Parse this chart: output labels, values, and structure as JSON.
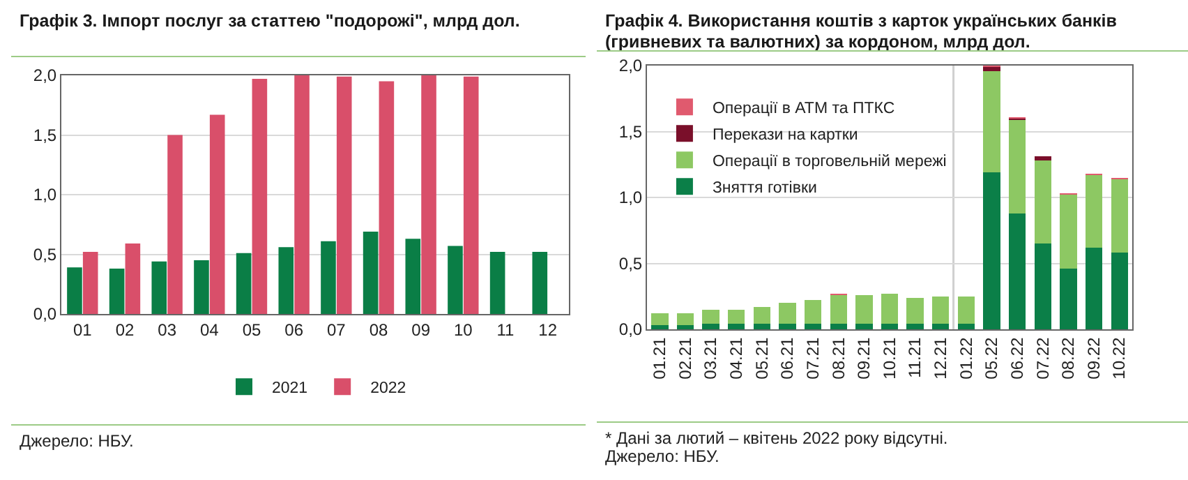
{
  "chart_data": [
    {
      "type": "bar",
      "title": "Графік 3. Імпорт послуг за статтею \"подорожі\", млрд дол.",
      "categories": [
        "01",
        "02",
        "03",
        "04",
        "05",
        "06",
        "07",
        "08",
        "09",
        "10",
        "11",
        "12"
      ],
      "series": [
        {
          "name": "2021",
          "color": "#0a7e46",
          "values": [
            0.39,
            0.38,
            0.44,
            0.45,
            0.51,
            0.56,
            0.61,
            0.69,
            0.63,
            0.57,
            0.52,
            0.52
          ]
        },
        {
          "name": "2022",
          "color": "#d94f6a",
          "values": [
            0.52,
            0.59,
            1.5,
            1.67,
            1.97,
            2.0,
            1.99,
            1.95,
            2.0,
            1.99,
            null,
            null
          ]
        }
      ],
      "ylim": [
        0,
        2
      ],
      "yticks": [
        {
          "value": 0,
          "label": "0,0"
        },
        {
          "value": 0.5,
          "label": "0,5"
        },
        {
          "value": 1,
          "label": "1,0"
        },
        {
          "value": 1.5,
          "label": "1,5"
        },
        {
          "value": 2,
          "label": "2,0"
        }
      ],
      "grid": "y",
      "legend": "bottom",
      "annotations": [
        "Джерело: НБУ."
      ]
    },
    {
      "type": "bar",
      "title": "Графік 4. Використання коштів з карток українських банків (гривневих та валютних) за кордоном, млрд дол.",
      "categories": [
        "01.21",
        "02.21",
        "03.21",
        "04.21",
        "05.21",
        "06.21",
        "07.21",
        "08.21",
        "09.21",
        "10.21",
        "11.21",
        "12.21",
        "01.22",
        "05.22",
        "06.22",
        "07.22",
        "08.22",
        "09.22",
        "10.22"
      ],
      "stacked": true,
      "series": [
        {
          "name": "Зняття готівки",
          "color": "#0b7f48",
          "values": [
            0.03,
            0.03,
            0.04,
            0.04,
            0.04,
            0.04,
            0.04,
            0.04,
            0.04,
            0.04,
            0.04,
            0.04,
            0.04,
            1.19,
            0.88,
            0.65,
            0.46,
            0.62,
            0.58
          ]
        },
        {
          "name": "Операції в торговельній мережі",
          "color": "#8dc863",
          "values": [
            0.09,
            0.09,
            0.11,
            0.11,
            0.13,
            0.16,
            0.18,
            0.22,
            0.22,
            0.23,
            0.2,
            0.21,
            0.21,
            0.77,
            0.71,
            0.63,
            0.56,
            0.55,
            0.56
          ]
        },
        {
          "name": "Перекази на картки",
          "color": "#7a0f2a",
          "values": [
            0,
            0,
            0,
            0,
            0,
            0,
            0,
            0,
            0,
            0,
            0,
            0,
            0,
            0.03,
            0.01,
            0.03,
            0,
            0,
            0
          ]
        },
        {
          "name": "Операції в АТМ та ПТКС",
          "color": "#e05a6e",
          "values": [
            0,
            0,
            0,
            0,
            0,
            0,
            0,
            0.01,
            0,
            0,
            0,
            0,
            0,
            0.01,
            0.01,
            0,
            0.01,
            0.01,
            0.01
          ]
        }
      ],
      "ylim": [
        0,
        2
      ],
      "yticks": [
        {
          "value": 0,
          "label": "0,0"
        },
        {
          "value": 0.5,
          "label": "0,5"
        },
        {
          "value": 1,
          "label": "1,0"
        },
        {
          "value": 1.5,
          "label": "1,5"
        },
        {
          "value": 2,
          "label": "2,0"
        }
      ],
      "grid": "y",
      "legend": "top left",
      "ref_lines": [
        {
          "axis": "x",
          "value": "01.22",
          "color": "#d0d0d0"
        }
      ],
      "annotations": [
        "* Дані за лютий – квітень 2022 року відсутні.",
        "Джерело: НБУ."
      ]
    }
  ]
}
